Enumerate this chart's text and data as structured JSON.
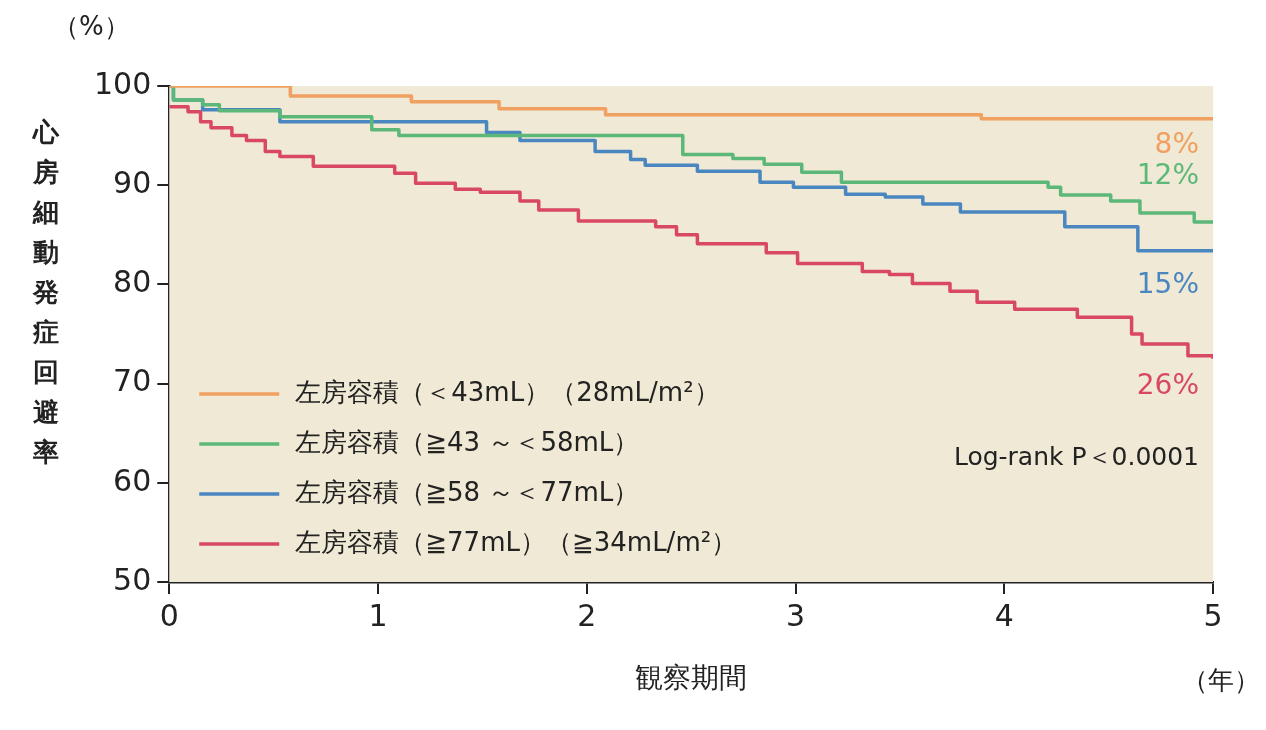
{
  "chart_data": {
    "type": "step",
    "xlabel": "観察期間",
    "ylabel": "心房細動発症回避率",
    "xlim": [
      0,
      5
    ],
    "xticks": [
      0,
      1,
      2,
      3,
      4,
      5
    ],
    "ylim": [
      50,
      100
    ],
    "yticks": [
      50,
      60,
      70,
      80,
      90,
      100
    ],
    "grid": false,
    "legend": "bottom left",
    "marker": "none",
    "line_style": "solid",
    "series": [
      {
        "name": "左房容積（＜43mL）（28mL/m²）",
        "color": "#f0a060",
        "x": [
          0,
          0.58,
          1.16,
          1.58,
          2.09,
          3.89,
          5
        ],
        "values": [
          100,
          99.0,
          98.4,
          97.7,
          97.1,
          96.7,
          96.7
        ]
      },
      {
        "name": "左房容積（≧43 ～＜58mL）",
        "color": "#5cb878",
        "x": [
          0,
          0.02,
          0.16,
          0.24,
          0.53,
          0.97,
          1.1,
          2.46,
          2.7,
          2.85,
          3.03,
          3.22,
          4.21,
          4.27,
          4.51,
          4.65,
          4.91,
          5
        ],
        "values": [
          100,
          98.6,
          98.1,
          97.5,
          96.9,
          95.6,
          95.0,
          93.1,
          92.7,
          92.1,
          91.3,
          90.3,
          89.8,
          89.0,
          88.4,
          87.2,
          86.3,
          86.3
        ]
      },
      {
        "name": "左房容積（≧58 ～＜77mL）",
        "color": "#4a86c0",
        "x": [
          0,
          0.02,
          0.16,
          0.53,
          1.52,
          1.68,
          2.04,
          2.21,
          2.28,
          2.53,
          2.83,
          2.99,
          3.24,
          3.43,
          3.61,
          3.79,
          4.29,
          4.64,
          5
        ],
        "values": [
          100,
          98.6,
          97.6,
          96.4,
          95.3,
          94.5,
          93.4,
          92.6,
          92.0,
          91.4,
          90.3,
          89.8,
          89.1,
          88.8,
          88.1,
          87.3,
          85.8,
          83.4,
          83.4
        ]
      },
      {
        "name": "左房容積（≧77mL）（≧34mL/m²）",
        "color": "#d84860",
        "x": [
          0,
          0.09,
          0.15,
          0.2,
          0.3,
          0.37,
          0.46,
          0.53,
          0.69,
          1.08,
          1.18,
          1.37,
          1.49,
          1.68,
          1.77,
          1.96,
          2.33,
          2.43,
          2.53,
          2.86,
          3.01,
          3.32,
          3.45,
          3.56,
          3.74,
          3.87,
          4.05,
          4.35,
          4.61,
          4.66,
          4.88,
          5
        ],
        "values": [
          97.9,
          97.4,
          96.4,
          95.8,
          95.0,
          94.5,
          93.4,
          92.9,
          91.9,
          91.2,
          90.2,
          89.6,
          89.3,
          88.4,
          87.5,
          86.4,
          85.8,
          85.0,
          84.1,
          83.2,
          82.1,
          81.3,
          81.0,
          80.1,
          79.3,
          78.2,
          77.5,
          76.7,
          75.0,
          74.0,
          72.8,
          72.5
        ]
      }
    ],
    "annotations": [
      "8%",
      "12%",
      "15%",
      "26%",
      "Log-rank P＜0.0001",
      "（%）",
      "（年）"
    ]
  }
}
